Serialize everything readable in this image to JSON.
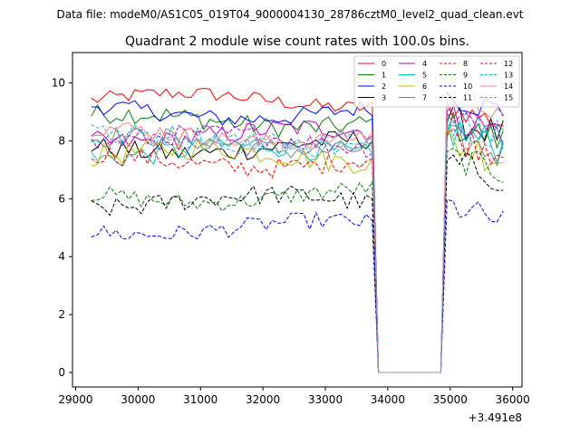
{
  "header": {
    "suptitle": "Data file: modeM0/AS1C05_019T04_9000004130_28786cztM0_level2_quad_clean.evt"
  },
  "chart_data": {
    "type": "line",
    "title": "Quadrant 2 module wise count rates with 100.0s bins.",
    "xlabel": "",
    "ylabel": "",
    "x_offset_label": "+3.491e8",
    "xlim": [
      28950,
      36150
    ],
    "ylim": [
      -0.5,
      11.05
    ],
    "xticks": [
      29000,
      30000,
      31000,
      32000,
      33000,
      34000,
      35000,
      36000
    ],
    "yticks": [
      0,
      2,
      4,
      6,
      8,
      10
    ],
    "grid": false,
    "legend": {
      "position": "top-right",
      "columns": 4
    },
    "gap": {
      "start": 33800,
      "end": 34900
    },
    "x_start": 29250,
    "x_end": 35850,
    "bin": 100,
    "series": [
      {
        "name": "0",
        "color": "#ff0000",
        "dash": "solid",
        "base": 9.4,
        "end_level": 9.2,
        "amp": 0.25
      },
      {
        "name": "1",
        "color": "#008000",
        "dash": "solid",
        "base": 8.7,
        "end_level": 8.6,
        "amp": 0.35
      },
      {
        "name": "2",
        "color": "#0000ff",
        "dash": "solid",
        "base": 9.0,
        "end_level": 9.6,
        "amp": 0.3
      },
      {
        "name": "3",
        "color": "#000000",
        "dash": "solid",
        "base": 7.8,
        "end_level": 8.8,
        "amp": 0.35
      },
      {
        "name": "4",
        "color": "#bf00bf",
        "dash": "solid",
        "base": 8.2,
        "end_level": 8.9,
        "amp": 0.35
      },
      {
        "name": "5",
        "color": "#00bfbf",
        "dash": "solid",
        "base": 7.6,
        "end_level": 8.4,
        "amp": 0.4
      },
      {
        "name": "6",
        "color": "#bfbf00",
        "dash": "solid",
        "base": 7.5,
        "end_level": 8.0,
        "amp": 0.4
      },
      {
        "name": "7",
        "color": "#808080",
        "dash": "solid",
        "base": 7.9,
        "end_level": 8.1,
        "amp": 0.35
      },
      {
        "name": "8",
        "color": "#ff0000",
        "dash": "dashed",
        "base": 7.3,
        "end_level": 8.2,
        "amp": 0.35
      },
      {
        "name": "9",
        "color": "#008000",
        "dash": "dashed",
        "base": 6.1,
        "end_level": 7.5,
        "amp": 0.3
      },
      {
        "name": "10",
        "color": "#0000ff",
        "dash": "dashed",
        "base": 5.0,
        "end_level": 5.8,
        "amp": 0.3
      },
      {
        "name": "11",
        "color": "#000000",
        "dash": "dashed",
        "base": 5.9,
        "end_level": 7.3,
        "amp": 0.35
      },
      {
        "name": "12",
        "color": "#bf00bf",
        "dash": "dashed",
        "base": 8.0,
        "end_level": 9.0,
        "amp": 0.35
      },
      {
        "name": "13",
        "color": "#00bfbf",
        "dash": "dashed",
        "base": 8.0,
        "end_level": 8.8,
        "amp": 0.35
      },
      {
        "name": "14",
        "color": "#ff8080",
        "dash": "solid",
        "base": 8.2,
        "end_level": 9.7,
        "amp": 0.3
      },
      {
        "name": "15",
        "color": "#5f9fdf",
        "dash": "dashed",
        "base": 8.1,
        "end_level": 8.8,
        "amp": 0.35
      }
    ]
  }
}
